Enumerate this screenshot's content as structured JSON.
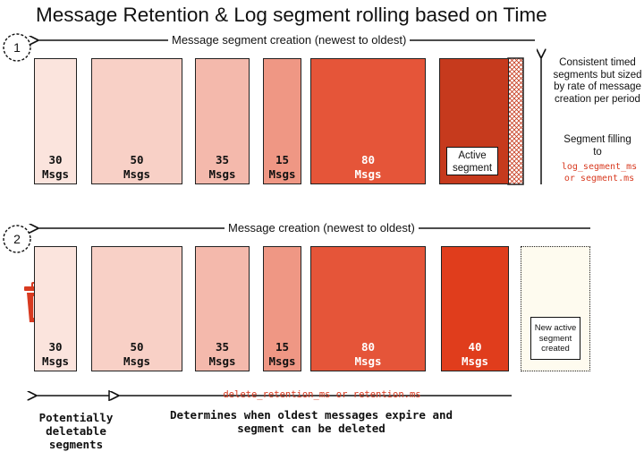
{
  "title": "Message Retention & Log segment rolling based on Time",
  "step1": {
    "number": "1",
    "arrow_label": "Message segment creation (newest to oldest)",
    "segments": [
      {
        "count": "30",
        "unit": "Msgs"
      },
      {
        "count": "50",
        "unit": "Msgs"
      },
      {
        "count": "35",
        "unit": "Msgs"
      },
      {
        "count": "15",
        "unit": "Msgs"
      },
      {
        "count": "80",
        "unit": "Msgs"
      }
    ],
    "active_label": "Active segment",
    "side_note": "Consistent timed segments but sized by rate of message creation per period",
    "filling_label": "Segment filling to",
    "config_1": "log_segment_ms",
    "config_2": "or segment.ms"
  },
  "step2": {
    "number": "2",
    "arrow_label": "Message creation (newest to oldest)",
    "segments": [
      {
        "count": "30",
        "unit": "Msgs"
      },
      {
        "count": "50",
        "unit": "Msgs"
      },
      {
        "count": "35",
        "unit": "Msgs"
      },
      {
        "count": "15",
        "unit": "Msgs"
      },
      {
        "count": "80",
        "unit": "Msgs"
      },
      {
        "count": "40",
        "unit": "Msgs"
      }
    ],
    "new_segment_label": "New active segment created",
    "retention_config": "delete_retention_ms or retention.ms",
    "deletable_label": "Potentially deletable segments",
    "expire_line1": "Determines when oldest messages expire and",
    "expire_line2": "segment can be deleted"
  },
  "colors": {
    "shade_1": "#fbe4dd",
    "shade_2": "#f8d0c6",
    "shade_3": "#f4b9ac",
    "shade_4": "#ef9784",
    "shade_5": "#e55539",
    "active": "#c63a1d",
    "new_active": "#fefbef",
    "accent_red": "#d83a20"
  }
}
